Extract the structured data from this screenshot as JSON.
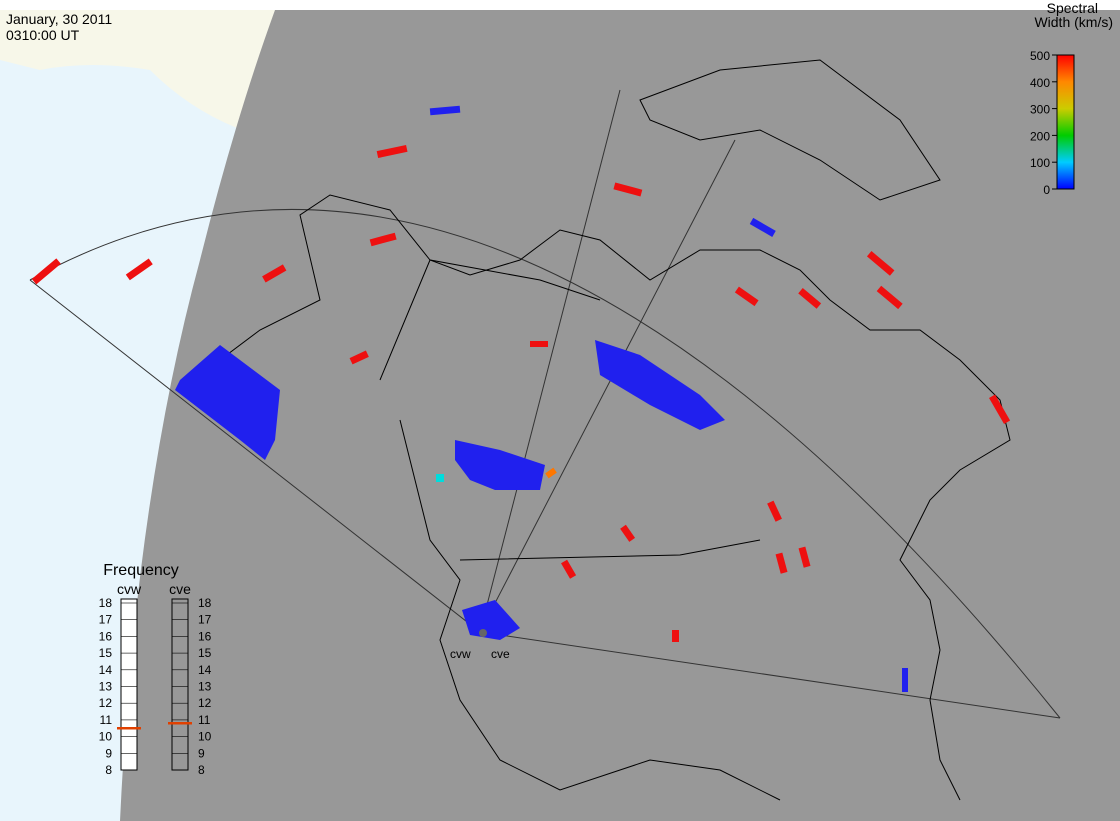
{
  "header": {
    "date": "January, 30 2011",
    "time": "0310:00 UT"
  },
  "colorbar": {
    "title": [
      "Spectral",
      "Width (km/s)"
    ],
    "ticks": [
      0,
      100,
      200,
      300,
      400,
      500
    ]
  },
  "frequency": {
    "title": "Frequency",
    "ticks": [
      8,
      9,
      10,
      11,
      12,
      13,
      14,
      15,
      16,
      17,
      18
    ],
    "radars": [
      {
        "name": "cvw",
        "value": 10.5
      },
      {
        "name": "cve",
        "value": 10.8
      }
    ]
  },
  "sites": [
    "cvw",
    "cve"
  ]
}
